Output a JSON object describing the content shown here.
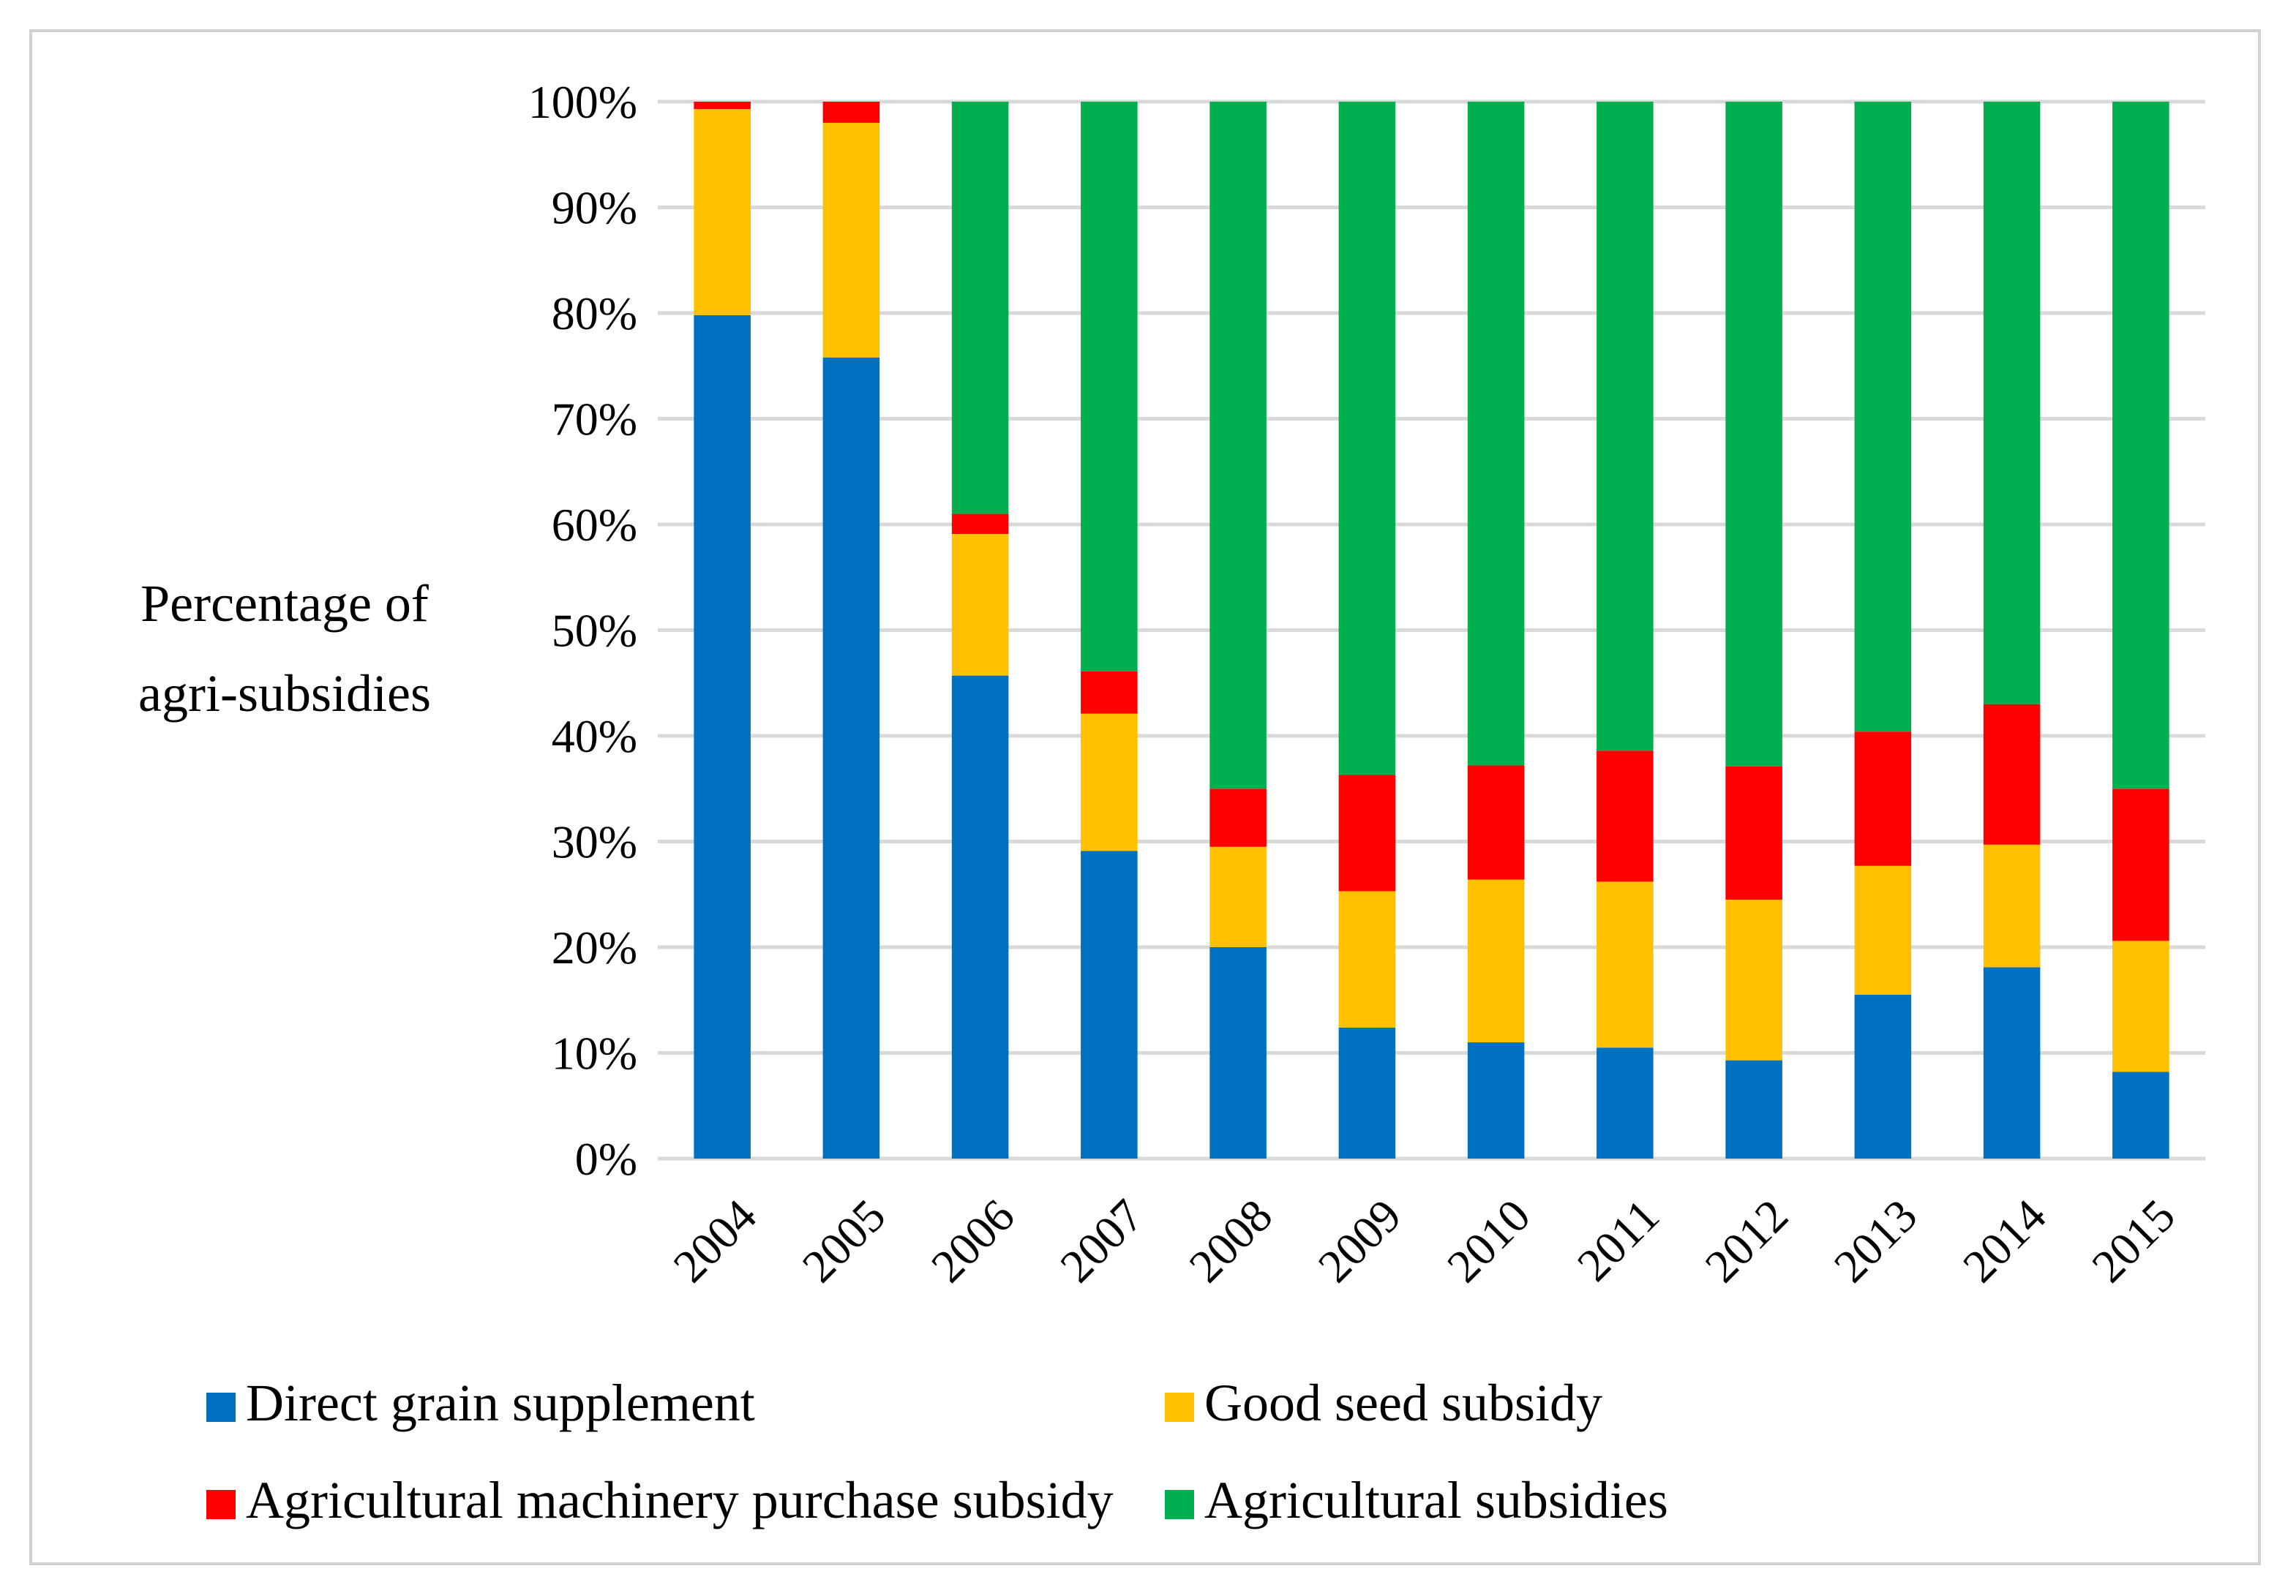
{
  "chart_data": {
    "type": "bar",
    "stacked": true,
    "title": "",
    "xlabel": "",
    "ylabel": [
      "Percentage of",
      "agri-subsidies"
    ],
    "ylim": [
      0,
      100
    ],
    "yticks": [
      "0%",
      "10%",
      "20%",
      "30%",
      "40%",
      "50%",
      "60%",
      "70%",
      "80%",
      "90%",
      "100%"
    ],
    "categories": [
      "2004",
      "2005",
      "2006",
      "2007",
      "2008",
      "2009",
      "2010",
      "2011",
      "2012",
      "2013",
      "2014",
      "2015"
    ],
    "series": [
      {
        "name": "Direct grain supplement",
        "color": "#0070C0",
        "values": [
          79.8,
          75.8,
          45.7,
          29.1,
          20.0,
          12.4,
          11.0,
          10.5,
          9.3,
          15.5,
          18.1,
          8.2
        ]
      },
      {
        "name": "Good seed subsidy",
        "color": "#FFC000",
        "values": [
          19.5,
          22.2,
          13.4,
          13.0,
          9.5,
          12.9,
          15.4,
          15.7,
          15.2,
          12.2,
          11.6,
          12.4
        ]
      },
      {
        "name": "Agricultural machinery purchase subsidy",
        "color": "#FF0000",
        "values": [
          0.7,
          2.0,
          1.9,
          4.0,
          5.5,
          11.0,
          10.8,
          12.4,
          12.6,
          12.7,
          13.3,
          14.4
        ]
      },
      {
        "name": "Agricultural subsidies",
        "color": "#00B050",
        "values": [
          0.0,
          0.0,
          39.0,
          53.9,
          65.0,
          63.7,
          62.8,
          61.4,
          62.9,
          59.6,
          57.0,
          65.0
        ]
      }
    ],
    "legend_position": "bottom"
  }
}
